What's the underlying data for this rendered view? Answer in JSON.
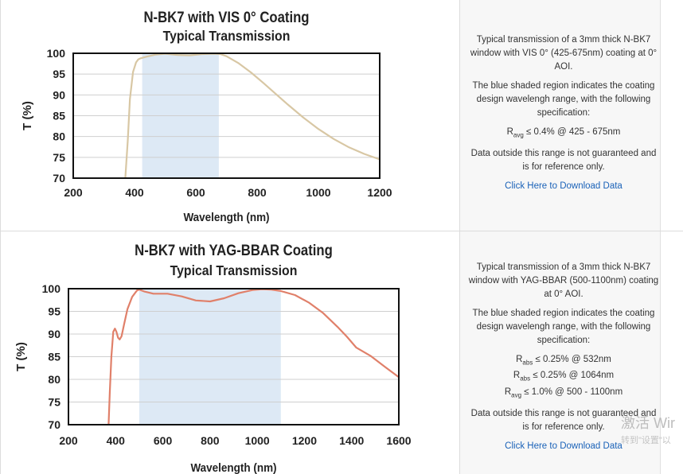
{
  "chart_data": [
    {
      "type": "line",
      "title": "N-BK7 with VIS 0° Coating",
      "subtitle": "Typical Transmission",
      "xlabel": "Wavelength (nm)",
      "ylabel": "T (%)",
      "xlim": [
        200,
        1200
      ],
      "ylim": [
        70,
        100
      ],
      "xticks": [
        "200",
        "400",
        "600",
        "800",
        "1000",
        "1200"
      ],
      "yticks": [
        "70",
        "75",
        "80",
        "85",
        "90",
        "95",
        "100"
      ],
      "shaded_range": [
        425,
        675
      ],
      "line_color": "#d8c7a4",
      "shade_color": "#dde9f5",
      "series": [
        {
          "name": "Transmission",
          "x": [
            370,
            378,
            385,
            395,
            405,
            412,
            420,
            440,
            470,
            500,
            540,
            580,
            620,
            660,
            680,
            700,
            740,
            780,
            820,
            860,
            900,
            950,
            1000,
            1050,
            1100,
            1150,
            1200
          ],
          "y": [
            70,
            79,
            89,
            95.5,
            97.8,
            98.5,
            98.8,
            99.2,
            99.7,
            99.9,
            99.6,
            99.5,
            99.8,
            99.9,
            99.8,
            99.3,
            97.6,
            95.4,
            92.9,
            90.3,
            87.7,
            84.6,
            81.8,
            79.4,
            77.4,
            75.8,
            74.5
          ]
        }
      ]
    },
    {
      "type": "line",
      "title": "N-BK7 with YAG-BBAR Coating",
      "subtitle": "Typical Transmission",
      "xlabel": "Wavelength (nm)",
      "ylabel": "T (%)",
      "xlim": [
        200,
        1600
      ],
      "ylim": [
        70,
        100
      ],
      "xticks": [
        "200",
        "400",
        "600",
        "800",
        "1000",
        "1200",
        "1400",
        "1600"
      ],
      "yticks": [
        "70",
        "75",
        "80",
        "85",
        "90",
        "95",
        "100"
      ],
      "shaded_range": [
        500,
        1100
      ],
      "line_color": "#e0806a",
      "shade_color": "#dde9f5",
      "series": [
        {
          "name": "Transmission",
          "x": [
            370,
            375,
            382,
            390,
            397,
            403,
            410,
            417,
            425,
            435,
            450,
            470,
            490,
            500,
            520,
            560,
            620,
            680,
            740,
            800,
            860,
            920,
            980,
            1020,
            1060,
            1100,
            1160,
            1220,
            1280,
            1340,
            1380,
            1420,
            1480,
            1540,
            1600
          ],
          "y": [
            70,
            77,
            85,
            90.5,
            91.2,
            90.5,
            89.2,
            88.8,
            89.5,
            92,
            95.5,
            98.2,
            99.6,
            99.8,
            99.4,
            98.9,
            98.9,
            98.3,
            97.4,
            97.2,
            97.9,
            99.0,
            99.7,
            99.9,
            99.8,
            99.5,
            98.6,
            96.9,
            94.6,
            91.6,
            89.4,
            87.0,
            85.2,
            82.8,
            80.5
          ]
        }
      ]
    }
  ],
  "info": [
    {
      "description": "Typical transmission of a 3mm thick N-BK7 window with VIS 0° (425-675nm) coating at 0° AOI.",
      "shade_note": "The blue shaded region indicates the coating design wavelengh range, with the following specification:",
      "specs": [
        {
          "symbol": "R",
          "sub": "avg",
          "text": "≤ 0.4% @ 425 - 675nm"
        }
      ],
      "disclaimer": "Data outside this range is not guaranteed and is for reference only.",
      "link": "Click Here to Download Data"
    },
    {
      "description": "Typical transmission of a 3mm thick N-BK7 window with YAG-BBAR (500-1100nm) coating at 0° AOI.",
      "shade_note": "The blue shaded region indicates the coating design wavelengh range, with the following specification:",
      "specs": [
        {
          "symbol": "R",
          "sub": "abs",
          "text": "≤ 0.25% @ 532nm"
        },
        {
          "symbol": "R",
          "sub": "abs",
          "text": "≤ 0.25% @ 1064nm"
        },
        {
          "symbol": "R",
          "sub": "avg",
          "text": "≤ 1.0% @ 500 - 1100nm"
        }
      ],
      "disclaimer": "Data outside this range is not guaranteed and is for reference only.",
      "link": "Click Here to Download Data"
    }
  ],
  "watermark": {
    "line1": "激活 Wir",
    "line2": "转到\"设置\"以"
  }
}
